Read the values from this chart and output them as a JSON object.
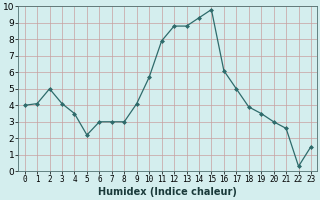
{
  "x": [
    0,
    1,
    2,
    3,
    4,
    5,
    6,
    7,
    8,
    9,
    10,
    11,
    12,
    13,
    14,
    15,
    16,
    17,
    18,
    19,
    20,
    21,
    22,
    23
  ],
  "y": [
    4.0,
    4.1,
    5.0,
    4.1,
    3.5,
    2.2,
    3.0,
    3.0,
    3.0,
    4.1,
    5.7,
    7.9,
    8.8,
    8.8,
    9.3,
    9.8,
    6.1,
    5.0,
    3.9,
    3.5,
    3.0,
    2.6,
    0.3,
    1.5
  ],
  "line_color": "#2e6b6b",
  "marker": "D",
  "marker_size": 2.0,
  "linewidth": 0.9,
  "xlabel": "Humidex (Indice chaleur)",
  "xlabel_fontsize": 7,
  "xlim": [
    -0.5,
    23.5
  ],
  "ylim": [
    0,
    10
  ],
  "yticks": [
    0,
    1,
    2,
    3,
    4,
    5,
    6,
    7,
    8,
    9,
    10
  ],
  "xticks": [
    0,
    1,
    2,
    3,
    4,
    5,
    6,
    7,
    8,
    9,
    10,
    11,
    12,
    13,
    14,
    15,
    16,
    17,
    18,
    19,
    20,
    21,
    22,
    23
  ],
  "grid_color": "#c8a0a0",
  "bg_color": "#d4eeee",
  "tick_fontsize": 5.5,
  "ytick_fontsize": 6.5
}
